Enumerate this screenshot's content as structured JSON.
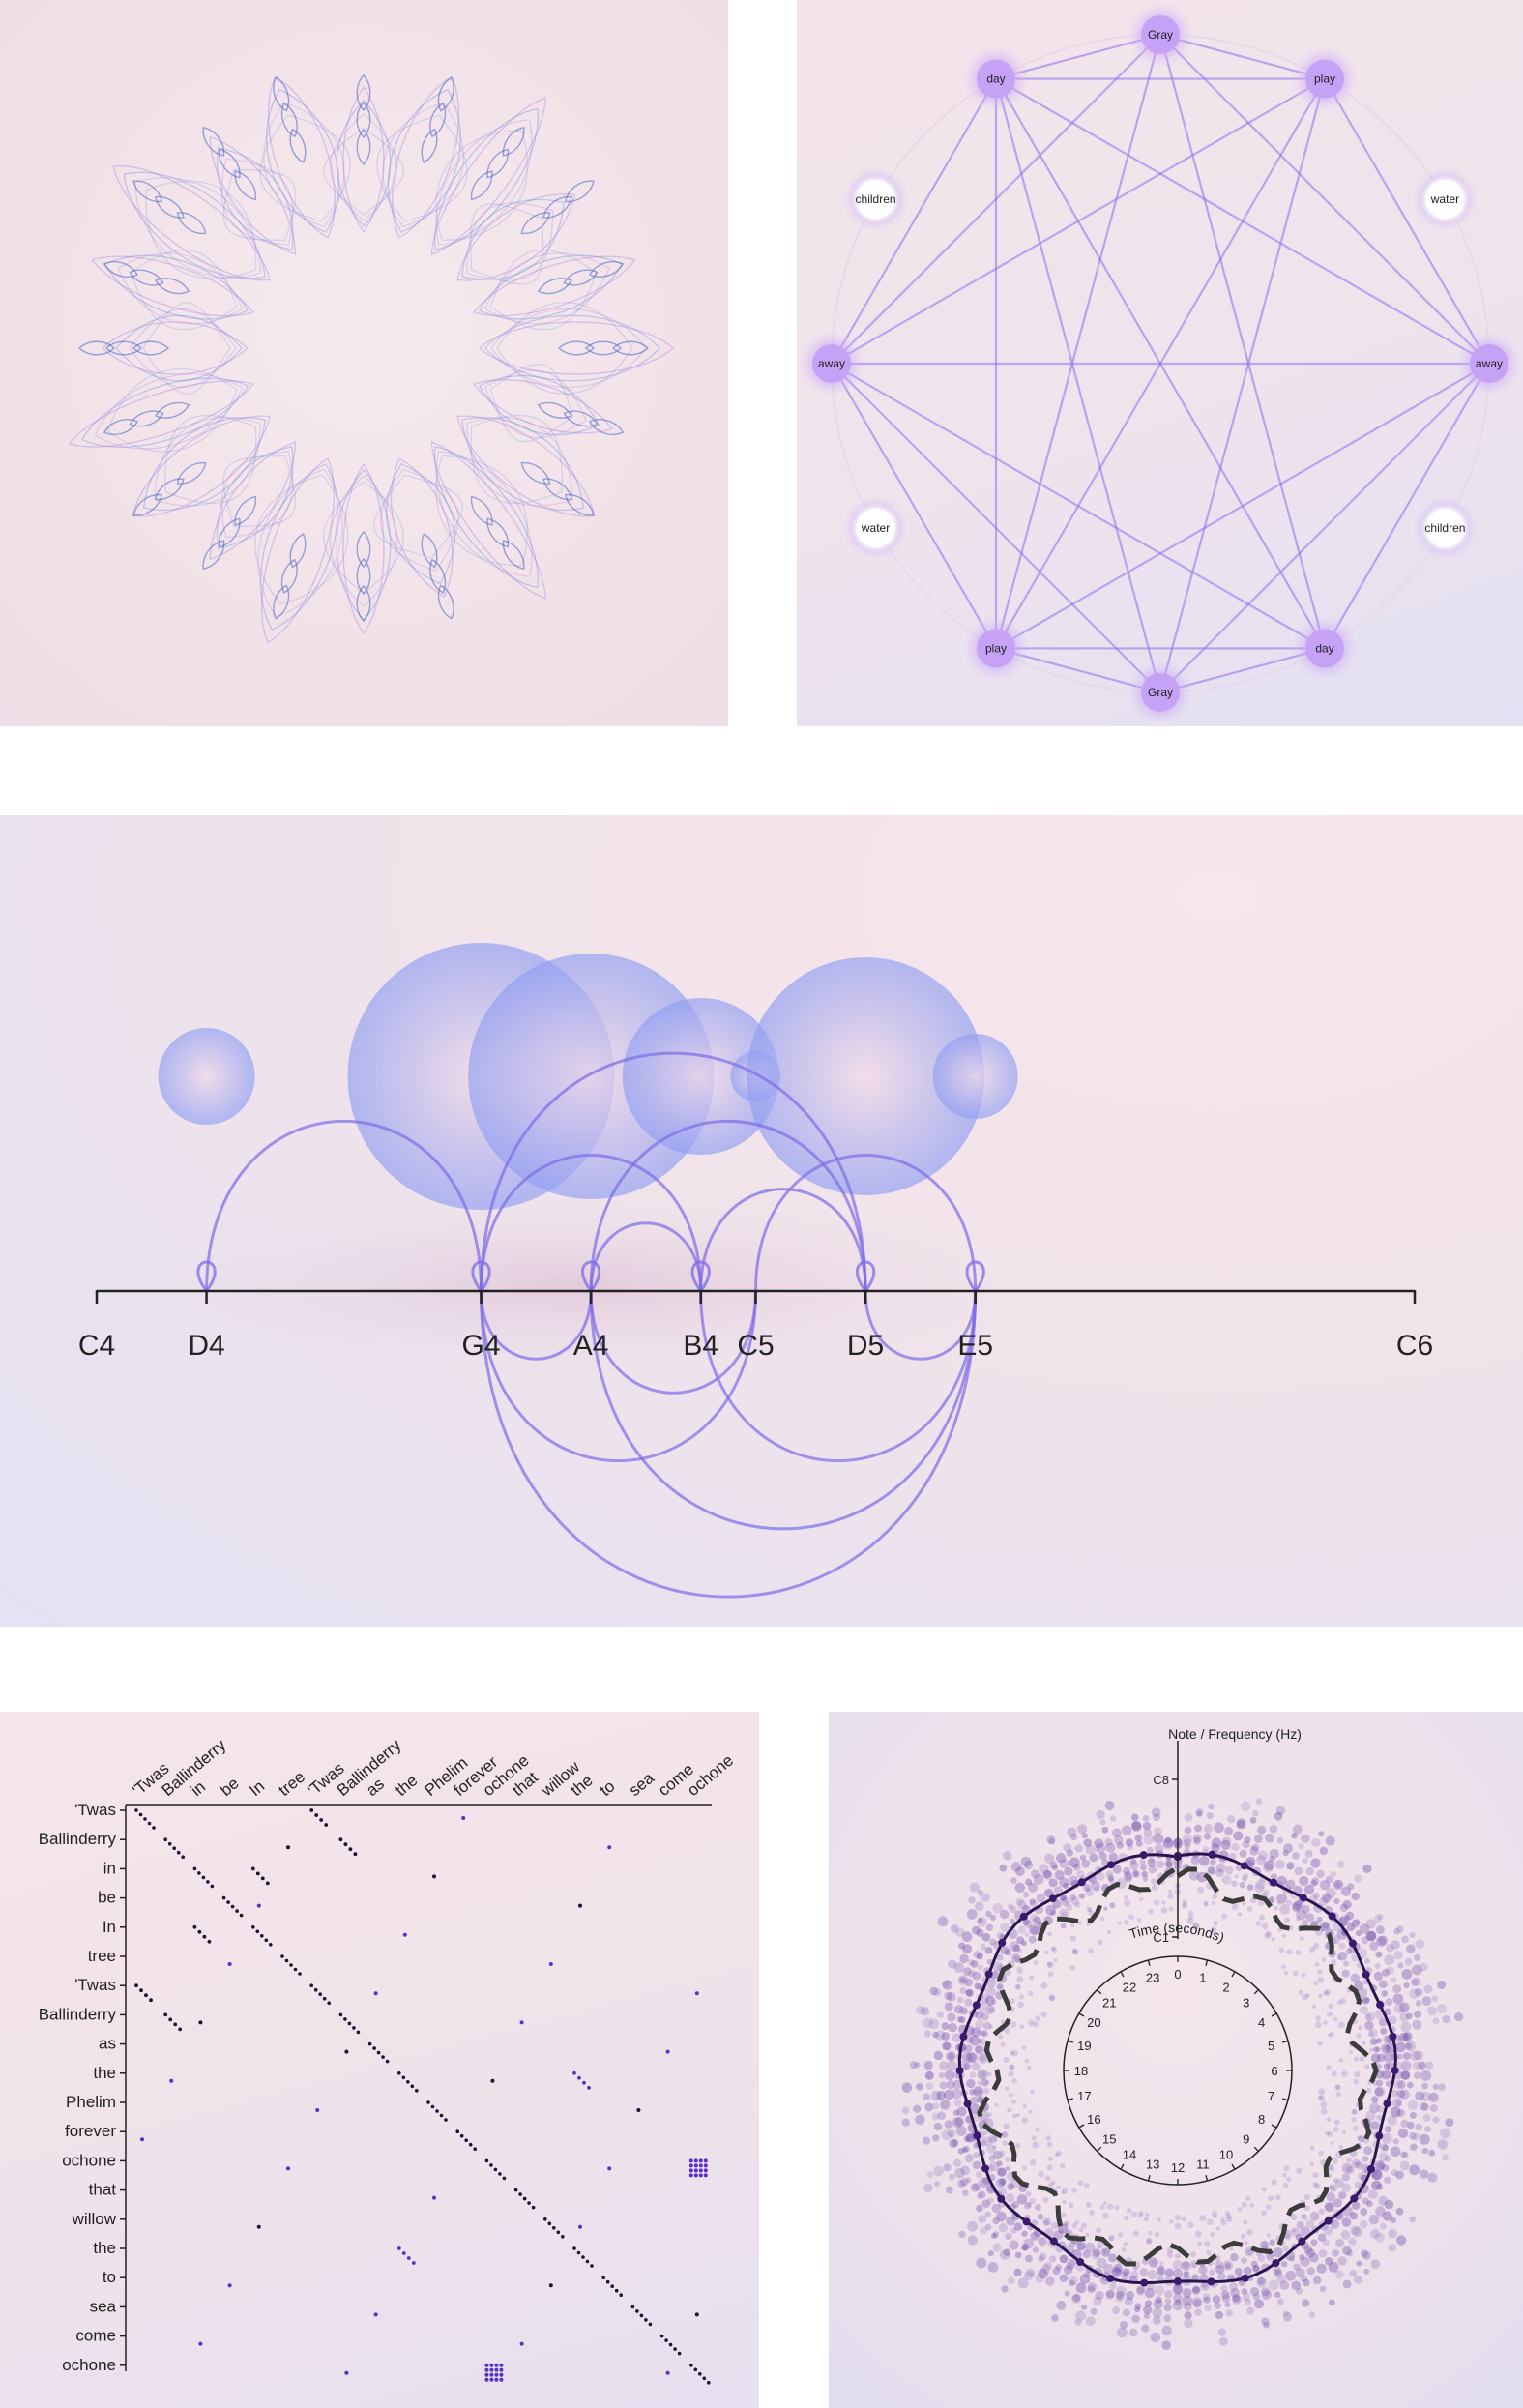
{
  "colors": {
    "purple": "#9f7cf0",
    "violet": "#7d63e6",
    "node_glow": "#c4a2f5",
    "dark_purple": "#3d1d6e",
    "bubble": "#8fa0f2",
    "axis": "#222222",
    "matrix_black": "#1a1230",
    "matrix_purple": "#5b2fc8"
  },
  "chart_data": [
    {
      "type": "other",
      "kind": "radial-ornament",
      "title": "",
      "petals": 20
    },
    {
      "type": "network",
      "title": "",
      "nodes": [
        {
          "label": "Gray",
          "highlight": true
        },
        {
          "label": "play",
          "highlight": true
        },
        {
          "label": "water",
          "highlight": false
        },
        {
          "label": "away",
          "highlight": true
        },
        {
          "label": "children",
          "highlight": false
        },
        {
          "label": "day",
          "highlight": true
        },
        {
          "label": "Gray",
          "highlight": true
        },
        {
          "label": "play",
          "highlight": true
        },
        {
          "label": "water",
          "highlight": false
        },
        {
          "label": "away",
          "highlight": true
        },
        {
          "label": "children",
          "highlight": false
        },
        {
          "label": "day",
          "highlight": true
        }
      ],
      "edges": [
        [
          0,
          1
        ],
        [
          0,
          11
        ],
        [
          0,
          3
        ],
        [
          0,
          9
        ],
        [
          0,
          5
        ],
        [
          0,
          7
        ],
        [
          1,
          3
        ],
        [
          1,
          7
        ],
        [
          1,
          9
        ],
        [
          1,
          6
        ],
        [
          1,
          11
        ],
        [
          3,
          5
        ],
        [
          3,
          9
        ],
        [
          3,
          11
        ],
        [
          3,
          7
        ],
        [
          5,
          6
        ],
        [
          5,
          7
        ],
        [
          5,
          11
        ],
        [
          5,
          9
        ],
        [
          6,
          7
        ],
        [
          6,
          11
        ],
        [
          7,
          9
        ],
        [
          7,
          11
        ],
        [
          9,
          11
        ],
        [
          6,
          9
        ],
        [
          6,
          3
        ]
      ]
    },
    {
      "type": "arc",
      "title": "",
      "axis_labels": [
        "C4",
        "D4",
        "G4",
        "A4",
        "B4",
        "C5",
        "D5",
        "E5",
        "C6"
      ],
      "axis_semitones": [
        0,
        2,
        7,
        9,
        11,
        12,
        14,
        16,
        24
      ],
      "bubbles": [
        {
          "note": "D4",
          "size": 0.5
        },
        {
          "note": "G4",
          "size": 1.38
        },
        {
          "note": "A4",
          "size": 1.27
        },
        {
          "note": "B4",
          "size": 0.81
        },
        {
          "note": "C5",
          "size": 0.26
        },
        {
          "note": "D5",
          "size": 1.23
        },
        {
          "note": "E5",
          "size": 0.44
        }
      ],
      "arcs": [
        [
          "D4",
          "G4"
        ],
        [
          "G4",
          "A4"
        ],
        [
          "G4",
          "B4"
        ],
        [
          "G4",
          "C5"
        ],
        [
          "G4",
          "D5"
        ],
        [
          "G4",
          "E5"
        ],
        [
          "A4",
          "B4"
        ],
        [
          "A4",
          "C5"
        ],
        [
          "A4",
          "D5"
        ],
        [
          "A4",
          "E5"
        ],
        [
          "B4",
          "D5"
        ],
        [
          "B4",
          "E5"
        ],
        [
          "C5",
          "E5"
        ],
        [
          "D5",
          "E5"
        ]
      ],
      "loops": [
        "D4",
        "G4",
        "A4",
        "B4",
        "D5",
        "E5"
      ]
    },
    {
      "type": "heatmap",
      "title": "",
      "words": [
        "'Twas",
        "Ballinderry",
        "in",
        "be",
        "In",
        "tree",
        "'Twas",
        "Ballinderry",
        "as",
        "the",
        "Phelim",
        "forever",
        "ochone",
        "that",
        "willow",
        "the",
        "to",
        "sea",
        "come",
        "ochone"
      ]
    },
    {
      "type": "radial-scatter",
      "title": "",
      "radial_axis_label": "Note / Frequency (Hz)",
      "radial_ticks": [
        "C8",
        "C1"
      ],
      "time_axis_label": "Time (seconds)",
      "time_ticks": [
        "0",
        "1",
        "2",
        "3",
        "4",
        "5",
        "6",
        "7",
        "8",
        "9",
        "10",
        "11",
        "12",
        "13",
        "14",
        "15",
        "16",
        "17",
        "18",
        "19",
        "20",
        "21",
        "22",
        "23"
      ]
    }
  ]
}
